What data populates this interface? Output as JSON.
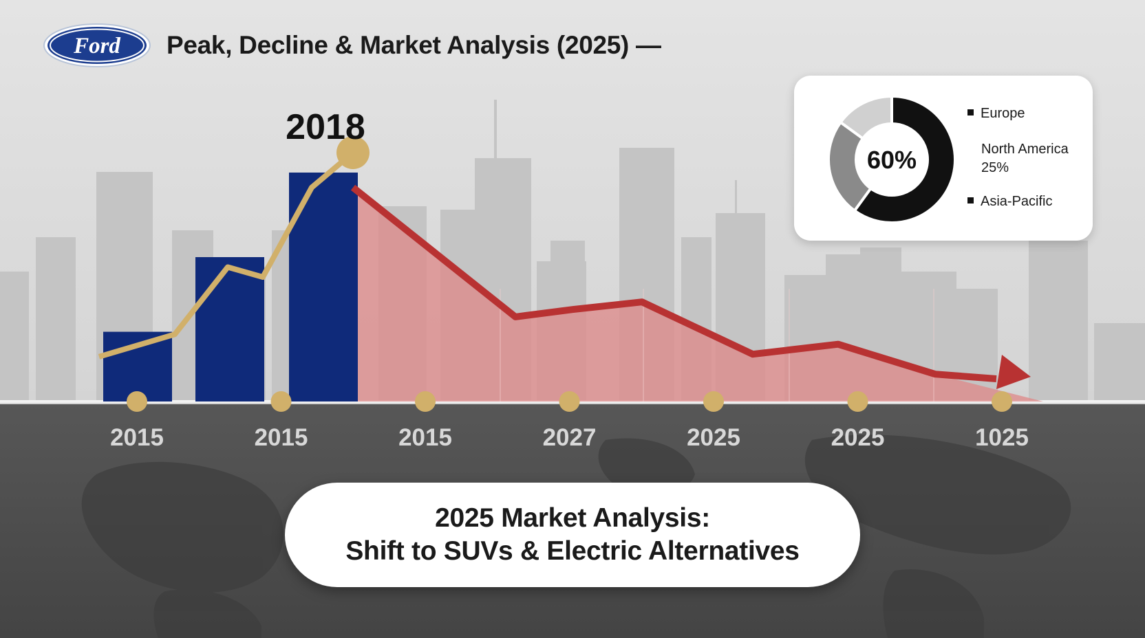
{
  "header": {
    "logo_text": "Ford",
    "title": "Peak, Decline & Market Analysis (2025) —"
  },
  "colors": {
    "bar": "#0f2a7a",
    "gold_line": "#d1b06a",
    "decline_line": "#b83232",
    "decline_area": "#de8a8a",
    "ford_blue": "#1c3d8f"
  },
  "chart_data": [
    {
      "type": "bar",
      "title": "",
      "xlabel": "",
      "ylabel": "",
      "ylim": [
        0,
        100
      ],
      "grid": false,
      "x_ticks": [
        "2015",
        "2015",
        "2015",
        "2027",
        "2025",
        "2025",
        "1025"
      ],
      "bar_values": [
        28,
        58,
        92
      ],
      "peak_label": "2018",
      "series": [
        {
          "kind": "line",
          "values": [
            18,
            27,
            54,
            50,
            86,
            100
          ]
        },
        {
          "kind": "area",
          "values": [
            86,
            34,
            37,
            40,
            19,
            23,
            11,
            0
          ]
        }
      ]
    },
    {
      "type": "pie",
      "center_label": "60%",
      "slices": [
        {
          "label": "Europe",
          "value": 60,
          "color": "#111111"
        },
        {
          "label": "North America 25%",
          "value": 25,
          "color": "#8a8a8a"
        },
        {
          "label": "Asia-Pacific",
          "value": 15,
          "color": "#d0d0d0"
        }
      ],
      "legend": [
        "Europe",
        "North America",
        "25%",
        "Asia-Pacific"
      ],
      "legend_position": "right"
    }
  ],
  "callout": {
    "line1": "2025 Market Analysis:",
    "line2": "Shift to SUVs & Electric Alternatives"
  }
}
